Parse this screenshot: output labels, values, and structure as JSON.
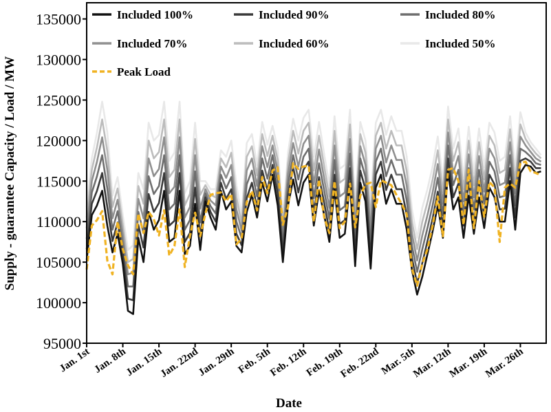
{
  "chart_data": {
    "type": "line",
    "title": "",
    "xlabel": "Date",
    "ylabel": "Supply - guarantee Capacity / Load / MW",
    "ylim": [
      95000,
      137000
    ],
    "xlim": [
      0,
      89
    ],
    "yticks": [
      95000,
      100000,
      105000,
      110000,
      115000,
      120000,
      125000,
      130000,
      135000
    ],
    "xticks": [
      {
        "label": "Jan. 1st",
        "x": 0
      },
      {
        "label": "Jan. 8th",
        "x": 7
      },
      {
        "label": "Jan. 15th",
        "x": 14
      },
      {
        "label": "Jan. 22nd",
        "x": 21
      },
      {
        "label": "Jan. 29th",
        "x": 28
      },
      {
        "label": "Feb. 5th",
        "x": 35
      },
      {
        "label": "Feb. 12th",
        "x": 42
      },
      {
        "label": "Feb. 19th",
        "x": 49
      },
      {
        "label": "Feb. 22nd",
        "x": 56
      },
      {
        "label": "Mar. 5th",
        "x": 63
      },
      {
        "label": "Mar. 12th",
        "x": 70
      },
      {
        "label": "Mar. 19th",
        "x": 77
      },
      {
        "label": "Mar. 26th",
        "x": 84
      }
    ],
    "legend_position": "top",
    "x": [
      0,
      1,
      2,
      3,
      4,
      5,
      6,
      7,
      8,
      9,
      10,
      11,
      12,
      13,
      14,
      15,
      16,
      17,
      18,
      19,
      20,
      21,
      22,
      23,
      24,
      25,
      26,
      27,
      28,
      29,
      30,
      31,
      32,
      33,
      34,
      35,
      36,
      37,
      38,
      39,
      40,
      41,
      42,
      43,
      44,
      45,
      46,
      47,
      48,
      49,
      50,
      51,
      52,
      53,
      54,
      55,
      56,
      57,
      58,
      59,
      60,
      61,
      62,
      63,
      64,
      65,
      66,
      67,
      68,
      69,
      70,
      71,
      72,
      73,
      74,
      75,
      76,
      77,
      78,
      79,
      80,
      81,
      82,
      83,
      84,
      85,
      86,
      87,
      88
    ],
    "series": [
      {
        "name": "Included 100%",
        "color": "#111111",
        "style": "solid",
        "values": [
          105300,
          110800,
          112000,
          113800,
          109500,
          106200,
          108500,
          104800,
          99000,
          98600,
          108000,
          105000,
          111200,
          109000,
          110200,
          113800,
          107500,
          108000,
          113800,
          106000,
          107000,
          112200,
          106500,
          112500,
          110500,
          109000,
          113800,
          111500,
          112500,
          107000,
          106200,
          111200,
          113300,
          110500,
          114800,
          112500,
          115800,
          112000,
          105000,
          112000,
          115200,
          112000,
          114800,
          115800,
          109500,
          113800,
          110800,
          107500,
          114000,
          108000,
          108500,
          114800,
          104500,
          114800,
          112500,
          104200,
          114200,
          115800,
          112200,
          114000,
          112200,
          112200,
          109000,
          104000,
          101000,
          103200,
          106000,
          108800,
          112000,
          108000,
          116200,
          111500,
          113000,
          108000,
          113200,
          108500,
          113000,
          109200,
          114200,
          113000,
          110000,
          110000,
          115000,
          109000,
          116000,
          117000,
          116800,
          116000,
          116200
        ]
      },
      {
        "name": "Included 90%",
        "color": "#3a3a3a",
        "style": "solid",
        "values": [
          106600,
          112200,
          113800,
          116000,
          111800,
          107600,
          109900,
          106000,
          100500,
          100300,
          109600,
          106800,
          113400,
          111200,
          112300,
          116000,
          109500,
          110100,
          116000,
          107500,
          108600,
          114200,
          108200,
          113000,
          111200,
          110000,
          114800,
          112800,
          114000,
          108500,
          107100,
          112900,
          114800,
          111800,
          116300,
          113900,
          117000,
          113400,
          106100,
          113300,
          116700,
          113600,
          116400,
          117400,
          111200,
          115500,
          112300,
          108900,
          115800,
          109700,
          110200,
          116600,
          106000,
          116300,
          114000,
          105800,
          115800,
          117400,
          113900,
          115800,
          114000,
          114000,
          110800,
          105500,
          102400,
          104900,
          107600,
          110400,
          113700,
          109400,
          117800,
          113000,
          114700,
          109500,
          114900,
          110000,
          114700,
          110700,
          115800,
          114600,
          111500,
          111600,
          116600,
          110500,
          117500,
          117800,
          117400,
          116600,
          116600
        ]
      },
      {
        "name": "Included 80%",
        "color": "#6e6e6e",
        "style": "solid",
        "values": [
          107900,
          113600,
          115600,
          118200,
          114100,
          109000,
          111300,
          107200,
          102000,
          102000,
          111200,
          108600,
          115600,
          113400,
          114400,
          118200,
          111500,
          112200,
          118200,
          109000,
          110200,
          116200,
          109900,
          113500,
          111900,
          111000,
          115800,
          114100,
          115500,
          110000,
          108000,
          114600,
          116300,
          113100,
          117800,
          115300,
          118200,
          114800,
          107200,
          114600,
          118200,
          115200,
          118000,
          119000,
          112900,
          117200,
          113800,
          110300,
          117600,
          111400,
          111900,
          118400,
          107500,
          117800,
          115500,
          107400,
          117400,
          119000,
          115600,
          117600,
          115800,
          115800,
          112600,
          107000,
          103800,
          106600,
          109200,
          112000,
          115400,
          110800,
          119400,
          114500,
          116400,
          111000,
          116600,
          111500,
          116400,
          112200,
          117400,
          116200,
          113000,
          113200,
          118200,
          112000,
          119000,
          118600,
          118000,
          117200,
          117000
        ]
      },
      {
        "name": "Included 70%",
        "color": "#8f8f8f",
        "style": "solid",
        "values": [
          109200,
          115000,
          117400,
          120400,
          116400,
          110400,
          112700,
          108400,
          103500,
          103700,
          112800,
          110400,
          117800,
          115600,
          116500,
          120400,
          113500,
          114300,
          120400,
          110500,
          111800,
          118200,
          111600,
          114000,
          112600,
          112000,
          116800,
          115400,
          117000,
          111500,
          108900,
          116300,
          117800,
          114400,
          119300,
          116700,
          119400,
          116200,
          108300,
          115900,
          119700,
          116800,
          119600,
          120600,
          114600,
          118900,
          115300,
          111700,
          119400,
          113100,
          113600,
          120200,
          109000,
          119300,
          117000,
          109000,
          119000,
          120600,
          117300,
          119400,
          117600,
          117600,
          114400,
          108500,
          105200,
          108300,
          110800,
          113600,
          117100,
          112200,
          121000,
          116000,
          118100,
          112500,
          118300,
          113000,
          118100,
          113700,
          119000,
          117800,
          114500,
          114800,
          119800,
          113500,
          120500,
          119400,
          118600,
          117800,
          117400
        ]
      },
      {
        "name": "Included 60%",
        "color": "#bcbcbc",
        "style": "solid",
        "values": [
          110500,
          116400,
          119200,
          122600,
          118700,
          111800,
          114100,
          109600,
          105000,
          105400,
          114400,
          112200,
          120000,
          117800,
          118600,
          122600,
          115500,
          116400,
          122600,
          112000,
          113400,
          120200,
          113300,
          114500,
          113300,
          113000,
          117800,
          116700,
          118500,
          113000,
          109800,
          118000,
          119300,
          115700,
          120800,
          118100,
          120600,
          117600,
          109400,
          117200,
          121200,
          118400,
          121200,
          122200,
          116300,
          120600,
          116800,
          113100,
          121200,
          114800,
          115300,
          122000,
          110500,
          120800,
          118500,
          110600,
          120600,
          122200,
          119000,
          121200,
          119400,
          119400,
          116200,
          110000,
          106600,
          110000,
          112400,
          115200,
          118800,
          113600,
          122600,
          117500,
          119800,
          114000,
          120000,
          114500,
          119800,
          115200,
          120600,
          119400,
          116000,
          116400,
          121400,
          115000,
          122000,
          120200,
          119200,
          118400,
          117800
        ]
      },
      {
        "name": "Included 50%",
        "color": "#e8e8e8",
        "style": "solid",
        "values": [
          111800,
          117800,
          121000,
          124800,
          121000,
          113200,
          115500,
          110800,
          106500,
          107100,
          116000,
          114000,
          122200,
          120000,
          120700,
          124800,
          117500,
          118500,
          124800,
          113500,
          115000,
          122200,
          115000,
          115000,
          114000,
          114000,
          118800,
          118000,
          120000,
          114500,
          110700,
          119700,
          120800,
          117000,
          122300,
          119500,
          121800,
          119000,
          110500,
          118500,
          122700,
          120000,
          122800,
          123800,
          118000,
          122300,
          118300,
          114500,
          123000,
          116500,
          117000,
          123800,
          112000,
          122300,
          120000,
          112200,
          122200,
          123800,
          120700,
          123000,
          121200,
          121200,
          118000,
          111500,
          108000,
          111700,
          114000,
          116800,
          120500,
          115000,
          124200,
          119000,
          121500,
          115500,
          121700,
          116000,
          121500,
          116700,
          122200,
          121000,
          117500,
          118000,
          123000,
          116500,
          123500,
          121000,
          119800,
          119000,
          118200
        ]
      },
      {
        "name": "Peak Load",
        "color": "#f0b323",
        "style": "dashed",
        "values": [
          104100,
          109500,
          110200,
          111300,
          105200,
          103500,
          110000,
          106600,
          104600,
          103500,
          111000,
          108600,
          111200,
          110300,
          108300,
          111400,
          105800,
          107000,
          111500,
          104400,
          108200,
          111100,
          108200,
          111000,
          113300,
          113500,
          113600,
          112500,
          113400,
          107200,
          107900,
          112400,
          113800,
          111400,
          115500,
          113500,
          116300,
          116700,
          109600,
          111800,
          117200,
          116500,
          116800,
          116900,
          110000,
          115200,
          110500,
          108600,
          115000,
          109200,
          110000,
          114700,
          109300,
          113200,
          114600,
          114800,
          111800,
          115100,
          114800,
          114500,
          113300,
          112200,
          110900,
          104200,
          102100,
          104800,
          106600,
          109500,
          113100,
          108200,
          116400,
          116600,
          115000,
          109600,
          116400,
          109200,
          115000,
          110600,
          114900,
          114200,
          107500,
          114200,
          114700,
          114200,
          117200,
          117400,
          116200,
          116000,
          115700
        ]
      }
    ]
  }
}
